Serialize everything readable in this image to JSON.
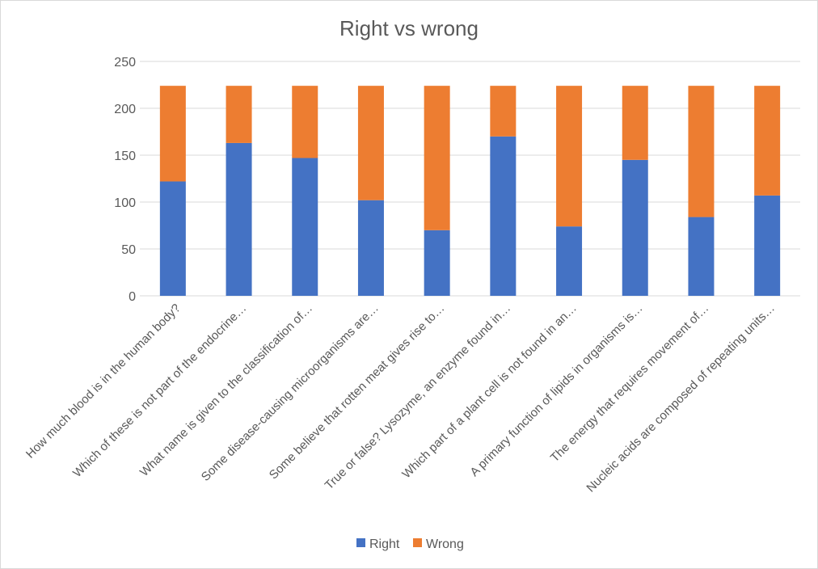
{
  "chart_data": {
    "type": "bar",
    "stacked": true,
    "title": "Right vs wrong",
    "xlabel": "",
    "ylabel": "",
    "ylim": [
      0,
      250
    ],
    "yticks": [
      0,
      50,
      100,
      150,
      200,
      250
    ],
    "grid": true,
    "legend_position": "bottom",
    "categories": [
      "How much blood is in the human body?",
      "Which of these is not part of the endocrine…",
      "What name is given to the classification of…",
      "Some disease-causing microorganisms are…",
      "Some believe that rotten meat gives rise to…",
      "True or false? Lysozyme, an enzyme found in…",
      "Which part of a plant cell is not found in an…",
      "A primary function of lipids in organisms is…",
      "The energy that requires movement of…",
      "Nucleic acids are composed of repeating units…"
    ],
    "series": [
      {
        "name": "Right",
        "color": "#4472c4",
        "values": [
          122,
          163,
          147,
          102,
          70,
          170,
          74,
          145,
          84,
          107
        ]
      },
      {
        "name": "Wrong",
        "color": "#ed7d31",
        "values": [
          102,
          61,
          77,
          122,
          154,
          54,
          150,
          79,
          140,
          117
        ]
      }
    ]
  }
}
